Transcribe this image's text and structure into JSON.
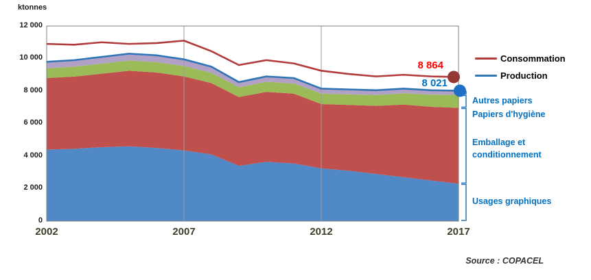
{
  "chart_data": {
    "type": "area",
    "title": "",
    "ylabel": "ktonnes",
    "xlabel": "",
    "x": [
      2002,
      2003,
      2004,
      2005,
      2006,
      2007,
      2008,
      2009,
      2010,
      2011,
      2012,
      2013,
      2014,
      2015,
      2016,
      2017
    ],
    "x_tick_labels": [
      "2002",
      "2007",
      "2012",
      "2017"
    ],
    "y_tick_labels": [
      "12 000",
      "10 000",
      "8 000",
      "6 000",
      "4 000",
      "2 000",
      "0"
    ],
    "ylim": [
      0,
      12000
    ],
    "gridlines_x": [
      2007,
      2012
    ],
    "legend_position": "right",
    "stack_series": [
      {
        "name": "Usages graphiques",
        "color": "#5089C6",
        "values": [
          4400,
          4450,
          4550,
          4600,
          4500,
          4350,
          4100,
          3400,
          3650,
          3550,
          3250,
          3100,
          2900,
          2700,
          2500,
          2300
        ]
      },
      {
        "name": "Emballage et conditionnement",
        "color": "#C0504D",
        "values": [
          4400,
          4440,
          4520,
          4650,
          4640,
          4550,
          4390,
          4230,
          4300,
          4290,
          3950,
          4050,
          4190,
          4470,
          4530,
          4671
        ]
      },
      {
        "name": "Papiers d'hygiène",
        "color": "#9BBB59",
        "values": [
          600,
          610,
          620,
          630,
          640,
          640,
          630,
          600,
          620,
          630,
          640,
          650,
          670,
          700,
          750,
          800
        ]
      },
      {
        "name": "Autres papiers",
        "color": "#B2A1C7",
        "values": [
          400,
          400,
          410,
          420,
          420,
          410,
          380,
          320,
          330,
          330,
          310,
          300,
          290,
          280,
          270,
          250
        ]
      }
    ],
    "line_series": [
      {
        "name": "Consommation",
        "color": "#B23A3A",
        "values": [
          10900,
          10850,
          11000,
          10900,
          10950,
          11100,
          10450,
          9600,
          9900,
          9700,
          9250,
          9050,
          8900,
          9000,
          8900,
          8864
        ]
      },
      {
        "name": "Production",
        "color": "#2E75B6",
        "values": [
          9800,
          9900,
          10100,
          10300,
          10200,
          9950,
          9500,
          8550,
          8900,
          8800,
          8150,
          8100,
          8050,
          8150,
          8050,
          8021
        ]
      }
    ],
    "end_labels": {
      "consommation": "8 864",
      "production": "8 021"
    },
    "dot_colors": {
      "consommation": "#953735",
      "production": "#1F6FC6"
    },
    "bracket_color": "#2E75B6",
    "source": "Source : COPACEL"
  }
}
